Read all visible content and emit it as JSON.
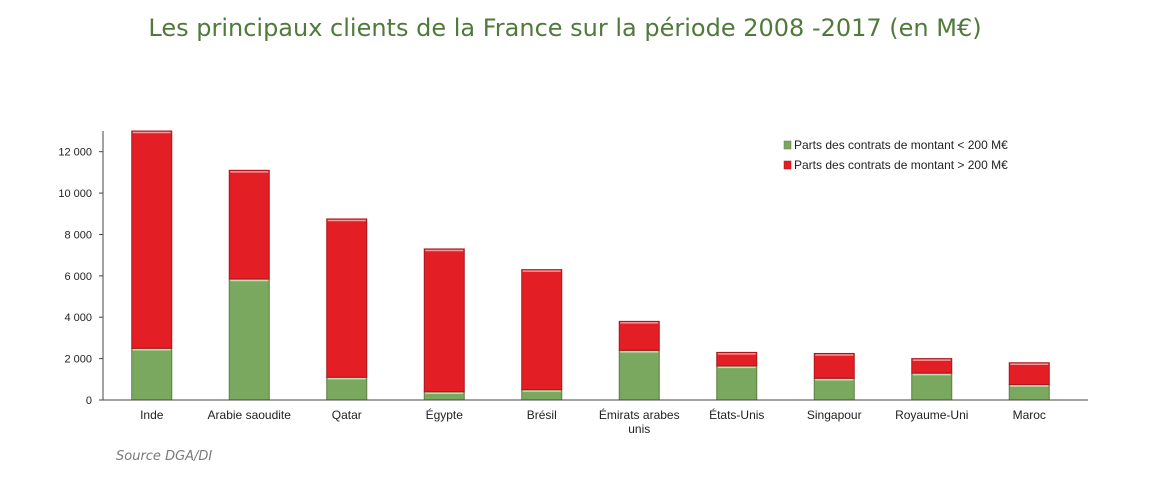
{
  "chart_data": {
    "type": "bar",
    "stacked": true,
    "title": "Les principaux clients de la France sur la période 2008 -2017 (en M€)",
    "xlabel": "",
    "ylabel": "",
    "ylim": [
      0,
      13000
    ],
    "yticks": [
      0,
      2000,
      4000,
      6000,
      8000,
      10000,
      12000
    ],
    "ytick_labels": [
      "0",
      "2 000",
      "4 000",
      "6 000",
      "8 000",
      "10 000",
      "12 000"
    ],
    "categories": [
      [
        "Inde"
      ],
      [
        "Arabie saoudite"
      ],
      [
        "Qatar"
      ],
      [
        "Égypte"
      ],
      [
        "Brésil"
      ],
      [
        "Émirats arabes",
        "unis"
      ],
      [
        "États-Unis"
      ],
      [
        "Singapour"
      ],
      [
        "Royaume-Uni"
      ],
      [
        "Maroc"
      ]
    ],
    "series": [
      {
        "name": "Parts des  contrats de montant < 200 M€",
        "color": "#7aa85e",
        "values": [
          2500,
          5850,
          1100,
          400,
          500,
          2400,
          1650,
          1050,
          1300,
          750
        ]
      },
      {
        "name": "Parts des  contrats de montant > 200 M€",
        "color": "#e31e24",
        "values": [
          10500,
          5250,
          7650,
          6900,
          5800,
          1400,
          650,
          1200,
          700,
          1050
        ]
      }
    ],
    "legend_position": "top-right",
    "grid": false
  },
  "source": "Source DGA/DI"
}
